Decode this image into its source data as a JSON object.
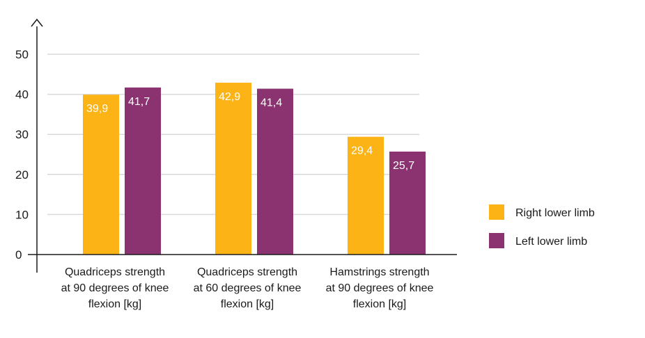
{
  "colors": {
    "right": "#FBB315",
    "left": "#8A3370",
    "grid": "#d9d9d9",
    "axis": "#1a1a1a"
  },
  "chart_data": {
    "type": "bar",
    "title": "",
    "xlabel": "",
    "ylabel": "",
    "ylim": [
      0,
      50
    ],
    "yticks": [
      "0",
      "10",
      "20",
      "30",
      "40",
      "50"
    ],
    "grid": true,
    "legend_position": "right",
    "categories": [
      [
        "Quadriceps strength",
        "at 90 degrees of knee",
        "flexion [kg]"
      ],
      [
        "Quadriceps strength",
        "at 60 degrees of knee",
        "flexion [kg]"
      ],
      [
        "Hamstrings strength",
        "at 90 degrees of knee",
        "flexion [kg]"
      ]
    ],
    "series": [
      {
        "name": "Right lower limb",
        "values": [
          39.9,
          42.9,
          29.4
        ],
        "labels": [
          "39,9",
          "42,9",
          "29,4"
        ]
      },
      {
        "name": "Left lower limb",
        "values": [
          41.7,
          41.4,
          25.7
        ],
        "labels": [
          "41,7",
          "41,4",
          "25,7"
        ]
      }
    ]
  }
}
